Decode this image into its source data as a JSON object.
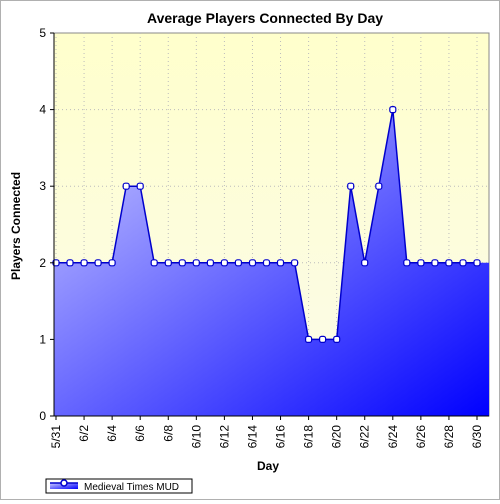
{
  "chart_data": {
    "type": "area",
    "title": "Average Players Connected By Day",
    "xlabel": "Day",
    "ylabel": "Players Connected",
    "ylim": [
      0,
      5
    ],
    "yticks": [
      "0",
      "1",
      "2",
      "3",
      "4",
      "5"
    ],
    "grid": true,
    "legend_position": "bottom-left",
    "colors": {
      "plot_bg_top": "#ffffcc",
      "plot_bg_bottom": "#fbfbea",
      "area_light": "#ccccff",
      "area_dark": "#0000ff",
      "line": "#0000cc",
      "marker_fill": "#ffffff",
      "grid": "#bcbcbc"
    },
    "categories": [
      "5/31",
      "6/1",
      "6/2",
      "6/3",
      "6/4",
      "6/5",
      "6/6",
      "6/7",
      "6/8",
      "6/9",
      "6/10",
      "6/11",
      "6/12",
      "6/13",
      "6/14",
      "6/15",
      "6/16",
      "6/17",
      "6/18",
      "6/19",
      "6/20",
      "6/21",
      "6/22",
      "6/23",
      "6/24",
      "6/25",
      "6/26",
      "6/27",
      "6/28",
      "6/29",
      "6/30"
    ],
    "tick_labels": [
      "5/31",
      "6/2",
      "6/4",
      "6/6",
      "6/8",
      "6/10",
      "6/12",
      "6/14",
      "6/16",
      "6/18",
      "6/20",
      "6/22",
      "6/24",
      "6/26",
      "6/28",
      "6/30"
    ],
    "series": [
      {
        "name": "Medieval Times MUD",
        "values": [
          2,
          2,
          2,
          2,
          2,
          3,
          3,
          2,
          2,
          2,
          2,
          2,
          2,
          2,
          2,
          2,
          2,
          2,
          1,
          1,
          1,
          3,
          2,
          3,
          4,
          2,
          2,
          2,
          2,
          2,
          2
        ]
      }
    ]
  }
}
